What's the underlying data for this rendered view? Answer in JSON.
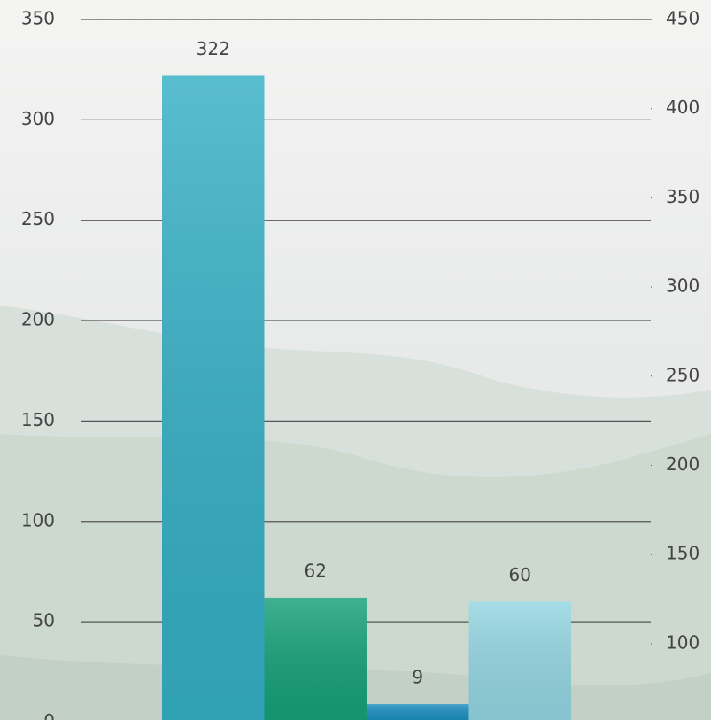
{
  "chart_data": {
    "type": "bar",
    "values": [
      322,
      62,
      9,
      60
    ],
    "colors": [
      "#35afc4",
      "#15a078",
      "#1a8dbf",
      "#93d5e1"
    ],
    "ylim": [
      0,
      350
    ],
    "yticks": [
      0,
      50,
      100,
      150,
      200,
      250,
      300,
      350
    ],
    "y2lim": [
      56,
      450
    ],
    "y2ticks": [
      100,
      150,
      200,
      250,
      300,
      350,
      400,
      450
    ],
    "grid": true
  }
}
